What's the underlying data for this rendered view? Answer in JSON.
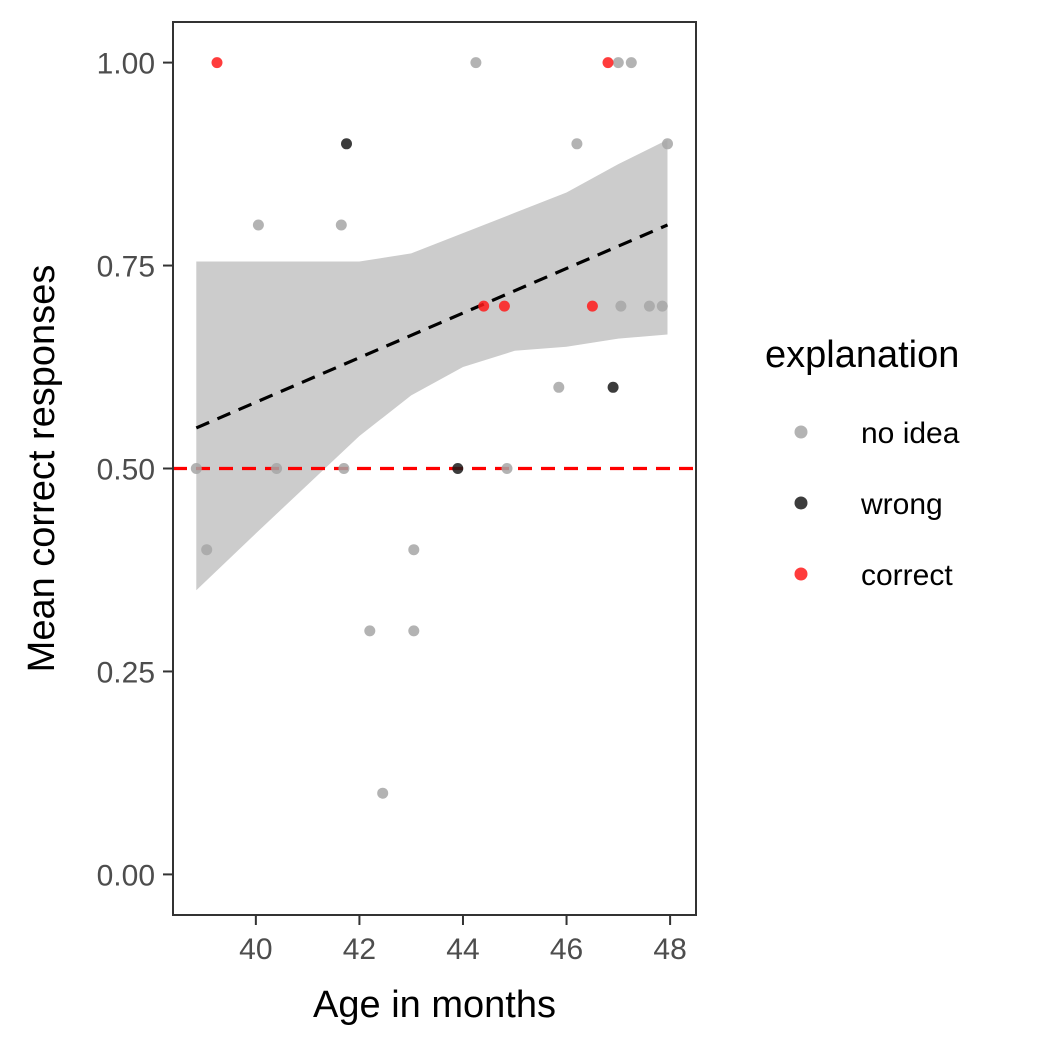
{
  "chart_data": {
    "type": "scatter",
    "xlabel": "Age in months",
    "ylabel": "Mean correct responses",
    "xlim": [
      38.4,
      48.5
    ],
    "ylim": [
      -0.05,
      1.05
    ],
    "x_ticks": [
      40,
      42,
      44,
      46,
      48
    ],
    "y_ticks": [
      0,
      0.25,
      0.5,
      0.75,
      1
    ],
    "x_tick_labels": [
      "40",
      "42",
      "44",
      "46",
      "48"
    ],
    "y_tick_labels": [
      "0.00",
      "0.25",
      "0.50",
      "0.75",
      "1.00"
    ],
    "grid": false,
    "legend": {
      "title": "explanation",
      "placement": "right",
      "items": [
        {
          "label": "no idea",
          "color": "#a6a6a6"
        },
        {
          "label": "wrong",
          "color": "#1a1a1a"
        },
        {
          "label": "correct",
          "color": "#ff1a1a"
        }
      ]
    },
    "series": [
      {
        "name": "no idea",
        "color": "#a6a6a6",
        "points": [
          {
            "x": 38.85,
            "y": 0.5
          },
          {
            "x": 39.05,
            "y": 0.4
          },
          {
            "x": 40.05,
            "y": 0.8
          },
          {
            "x": 40.4,
            "y": 0.5
          },
          {
            "x": 41.65,
            "y": 0.8
          },
          {
            "x": 41.7,
            "y": 0.5
          },
          {
            "x": 42.2,
            "y": 0.3
          },
          {
            "x": 42.45,
            "y": 0.1
          },
          {
            "x": 43.05,
            "y": 0.4
          },
          {
            "x": 43.05,
            "y": 0.3
          },
          {
            "x": 44.25,
            "y": 1.0
          },
          {
            "x": 44.85,
            "y": 0.5
          },
          {
            "x": 45.85,
            "y": 0.6
          },
          {
            "x": 46.2,
            "y": 0.9
          },
          {
            "x": 47.0,
            "y": 1.0
          },
          {
            "x": 47.05,
            "y": 0.7
          },
          {
            "x": 47.25,
            "y": 1.0
          },
          {
            "x": 47.6,
            "y": 0.7
          },
          {
            "x": 47.85,
            "y": 0.7
          },
          {
            "x": 47.95,
            "y": 0.9
          }
        ]
      },
      {
        "name": "wrong",
        "color": "#1a1a1a",
        "points": [
          {
            "x": 41.75,
            "y": 0.9
          },
          {
            "x": 43.9,
            "y": 0.5
          },
          {
            "x": 46.9,
            "y": 0.6
          }
        ]
      },
      {
        "name": "correct",
        "color": "#ff1a1a",
        "points": [
          {
            "x": 39.25,
            "y": 1.0
          },
          {
            "x": 44.4,
            "y": 0.7
          },
          {
            "x": 44.8,
            "y": 0.7
          },
          {
            "x": 46.5,
            "y": 0.7
          },
          {
            "x": 46.8,
            "y": 1.0
          }
        ]
      }
    ],
    "trend_line": {
      "style": "dashed",
      "color": "#000000",
      "x": [
        38.85,
        47.95
      ],
      "y": [
        0.55,
        0.8
      ]
    },
    "confidence_band": {
      "color": "#cccccc",
      "x": [
        38.85,
        40.0,
        41.0,
        42.0,
        43.0,
        44.0,
        45.0,
        46.0,
        47.0,
        47.95
      ],
      "lower": [
        0.35,
        0.42,
        0.48,
        0.54,
        0.59,
        0.625,
        0.645,
        0.65,
        0.66,
        0.665
      ],
      "upper": [
        0.755,
        0.755,
        0.755,
        0.755,
        0.765,
        0.79,
        0.815,
        0.84,
        0.875,
        0.905
      ]
    },
    "reference_line": {
      "style": "dashed",
      "color": "#ff0000",
      "y": 0.5
    }
  }
}
